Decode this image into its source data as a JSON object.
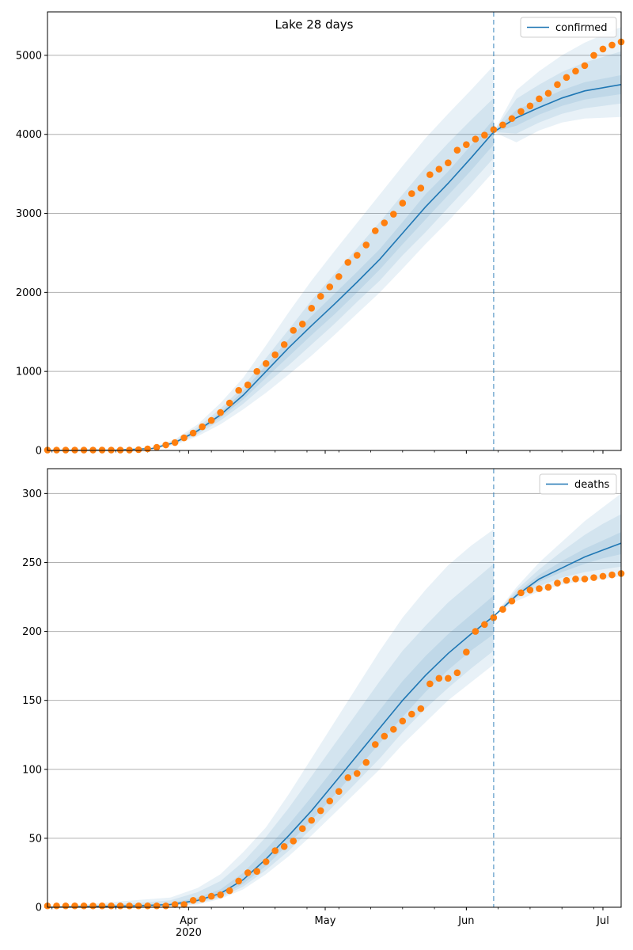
{
  "title": "Lake 28 days",
  "colors": {
    "model_line": "#1f77b4",
    "observed": "#ff7f0e",
    "band": "#1f77b4",
    "vline": "#1f77b4",
    "grid": "#b0b0b0"
  },
  "x_axis": {
    "type": "date",
    "range": [
      "2020-03-01",
      "2020-07-05"
    ],
    "major_ticks": [
      {
        "date": "2020-04-01",
        "label": "Apr"
      },
      {
        "date": "2020-05-01",
        "label": "May"
      },
      {
        "date": "2020-06-01",
        "label": "Jun"
      },
      {
        "date": "2020-07-01",
        "label": "Jul"
      }
    ],
    "year_label": "2020",
    "year_label_date": "2020-04-01",
    "minor_tick_interval_days": 7
  },
  "forecast_start": "2020-06-07",
  "chart_data": [
    {
      "type": "line",
      "legend": "confirmed",
      "legend_position": "top-right",
      "grid": "horizontal",
      "ylim": [
        0,
        5550
      ],
      "yticks": [
        0,
        1000,
        2000,
        3000,
        4000,
        5000
      ],
      "model": {
        "x": [
          "2020-03-01",
          "2020-03-16",
          "2020-03-24",
          "2020-03-29",
          "2020-04-03",
          "2020-04-08",
          "2020-04-13",
          "2020-04-18",
          "2020-04-23",
          "2020-04-28",
          "2020-05-03",
          "2020-05-08",
          "2020-05-13",
          "2020-05-18",
          "2020-05-23",
          "2020-05-28",
          "2020-06-02",
          "2020-06-07",
          "2020-06-12",
          "2020-06-17",
          "2020-06-22",
          "2020-06-27",
          "2020-07-05"
        ],
        "y": [
          0,
          5,
          25,
          100,
          250,
          450,
          700,
          1000,
          1300,
          1580,
          1850,
          2130,
          2420,
          2750,
          3080,
          3380,
          3700,
          4030,
          4210,
          4340,
          4460,
          4550,
          4630
        ],
        "bands": [
          {
            "lower": [
              0,
              2,
              15,
              70,
              180,
              330,
              520,
              730,
              960,
              1200,
              1460,
              1730,
              2000,
              2300,
              2610,
              2900,
              3210,
              3530,
              3900,
              4050,
              4150,
              4200,
              4220
            ],
            "upper": [
              0,
              8,
              35,
              140,
              330,
              600,
              920,
              1330,
              1750,
              2150,
              2520,
              2880,
              3240,
              3600,
              3950,
              4260,
              4560,
              4870,
              4560,
              4800,
              5000,
              5160,
              5360
            ]
          },
          {
            "lower": [
              0,
              3,
              19,
              83,
              207,
              380,
              590,
              840,
              1080,
              1340,
              1600,
              1880,
              2150,
              2470,
              2760,
              3070,
              3380,
              3700,
              4010,
              4150,
              4260,
              4330,
              4390
            ],
            "upper": [
              0,
              7,
              31,
              120,
              295,
              530,
              810,
              1170,
              1530,
              1900,
              2230,
              2560,
              2890,
              3240,
              3580,
              3890,
              4180,
              4460,
              4450,
              4630,
              4790,
              4910,
              5050
            ]
          },
          {
            "lower": [
              0,
              4,
              22,
              92,
              228,
              415,
              645,
              920,
              1190,
              1460,
              1720,
              2000,
              2290,
              2610,
              2920,
              3230,
              3540,
              3870,
              4110,
              4250,
              4360,
              4440,
              4510
            ],
            "upper": [
              0,
              6,
              28,
              108,
              272,
              485,
              755,
              1080,
              1410,
              1700,
              1980,
              2260,
              2550,
              2890,
              3240,
              3530,
              3860,
              4190,
              4310,
              4430,
              4560,
              4660,
              4750
            ]
          }
        ]
      },
      "observed": {
        "x": [
          "2020-03-01",
          "2020-03-03",
          "2020-03-05",
          "2020-03-07",
          "2020-03-09",
          "2020-03-11",
          "2020-03-13",
          "2020-03-15",
          "2020-03-17",
          "2020-03-19",
          "2020-03-21",
          "2020-03-23",
          "2020-03-25",
          "2020-03-27",
          "2020-03-29",
          "2020-03-31",
          "2020-04-02",
          "2020-04-04",
          "2020-04-06",
          "2020-04-08",
          "2020-04-10",
          "2020-04-12",
          "2020-04-14",
          "2020-04-16",
          "2020-04-18",
          "2020-04-20",
          "2020-04-22",
          "2020-04-24",
          "2020-04-26",
          "2020-04-28",
          "2020-04-30",
          "2020-05-02",
          "2020-05-04",
          "2020-05-06",
          "2020-05-08",
          "2020-05-10",
          "2020-05-12",
          "2020-05-14",
          "2020-05-16",
          "2020-05-18",
          "2020-05-20",
          "2020-05-22",
          "2020-05-24",
          "2020-05-26",
          "2020-05-28",
          "2020-05-30",
          "2020-06-01",
          "2020-06-03",
          "2020-06-05",
          "2020-06-07",
          "2020-06-09",
          "2020-06-11",
          "2020-06-13",
          "2020-06-15",
          "2020-06-17",
          "2020-06-19",
          "2020-06-21",
          "2020-06-23",
          "2020-06-25",
          "2020-06-27",
          "2020-06-29",
          "2020-07-01",
          "2020-07-03",
          "2020-07-05"
        ],
        "y": [
          5,
          5,
          5,
          5,
          5,
          5,
          5,
          5,
          5,
          5,
          10,
          20,
          40,
          70,
          100,
          160,
          220,
          300,
          380,
          480,
          600,
          760,
          830,
          1000,
          1100,
          1210,
          1340,
          1520,
          1600,
          1800,
          1950,
          2070,
          2200,
          2380,
          2470,
          2600,
          2780,
          2880,
          2990,
          3130,
          3250,
          3320,
          3490,
          3560,
          3640,
          3800,
          3870,
          3940,
          3990,
          4060,
          4120,
          4200,
          4290,
          4360,
          4450,
          4520,
          4630,
          4720,
          4800,
          4870,
          5000,
          5080,
          5130,
          5170
        ]
      }
    },
    {
      "type": "line",
      "legend": "deaths",
      "legend_position": "top-right",
      "grid": "horizontal",
      "ylim": [
        0,
        318
      ],
      "yticks": [
        0,
        50,
        100,
        150,
        200,
        250,
        300
      ],
      "model": {
        "x": [
          "2020-03-01",
          "2020-03-20",
          "2020-03-28",
          "2020-04-03",
          "2020-04-08",
          "2020-04-13",
          "2020-04-18",
          "2020-04-23",
          "2020-04-28",
          "2020-05-03",
          "2020-05-08",
          "2020-05-13",
          "2020-05-18",
          "2020-05-23",
          "2020-05-28",
          "2020-06-02",
          "2020-06-07",
          "2020-06-12",
          "2020-06-17",
          "2020-06-22",
          "2020-06-27",
          "2020-07-01",
          "2020-07-05"
        ],
        "y": [
          0,
          1,
          2,
          5,
          10,
          20,
          35,
          52,
          70,
          90,
          110,
          130,
          150,
          168,
          184,
          198,
          211,
          226,
          238,
          246,
          254,
          259,
          264
        ],
        "bands": [
          {
            "lower": [
              0,
              0,
              1,
              2,
              6,
              13,
              24,
              37,
              52,
              68,
              84,
              100,
              118,
              134,
              150,
              163,
              176,
              222,
              229,
              234,
              237,
              238,
              240
            ],
            "upper": [
              0,
              5,
              7,
              14,
              24,
              40,
              58,
              82,
              108,
              134,
              160,
              186,
              210,
              230,
              248,
              262,
              274,
              232,
              250,
              265,
              280,
              290,
              300
            ]
          },
          {
            "lower": [
              0,
              0,
              1,
              3,
              7,
              15,
              27,
              41,
              57,
              74,
              91,
              108,
              127,
              144,
              159,
              173,
              186,
              224,
              233,
              239,
              243,
              245,
              247
            ],
            "upper": [
              0,
              3,
              5,
              11,
              19,
              33,
              51,
              72,
              95,
              118,
              141,
              164,
              186,
              204,
              221,
              235,
              249,
              230,
              245,
              258,
              270,
              278,
              285
            ]
          },
          {
            "lower": [
              0,
              0,
              1,
              4,
              8,
              17,
              30,
              46,
              63,
              81,
              100,
              119,
              138,
              156,
              172,
              186,
              198,
              225,
              236,
              243,
              249,
              253,
              256
            ],
            "upper": [
              0,
              2,
              3,
              7,
              13,
              25,
              42,
              60,
              80,
              101,
              122,
              143,
              164,
              182,
              198,
              212,
              226,
              228,
              241,
              251,
              260,
              266,
              272
            ]
          }
        ]
      },
      "observed": {
        "x": [
          "2020-03-01",
          "2020-03-03",
          "2020-03-05",
          "2020-03-07",
          "2020-03-09",
          "2020-03-11",
          "2020-03-13",
          "2020-03-15",
          "2020-03-17",
          "2020-03-19",
          "2020-03-21",
          "2020-03-23",
          "2020-03-25",
          "2020-03-27",
          "2020-03-29",
          "2020-03-31",
          "2020-04-02",
          "2020-04-04",
          "2020-04-06",
          "2020-04-08",
          "2020-04-10",
          "2020-04-12",
          "2020-04-14",
          "2020-04-16",
          "2020-04-18",
          "2020-04-20",
          "2020-04-22",
          "2020-04-24",
          "2020-04-26",
          "2020-04-28",
          "2020-04-30",
          "2020-05-02",
          "2020-05-04",
          "2020-05-06",
          "2020-05-08",
          "2020-05-10",
          "2020-05-12",
          "2020-05-14",
          "2020-05-16",
          "2020-05-18",
          "2020-05-20",
          "2020-05-22",
          "2020-05-24",
          "2020-05-26",
          "2020-05-28",
          "2020-05-30",
          "2020-06-01",
          "2020-06-03",
          "2020-06-05",
          "2020-06-07",
          "2020-06-09",
          "2020-06-11",
          "2020-06-13",
          "2020-06-15",
          "2020-06-17",
          "2020-06-19",
          "2020-06-21",
          "2020-06-23",
          "2020-06-25",
          "2020-06-27",
          "2020-06-29",
          "2020-07-01",
          "2020-07-03",
          "2020-07-05"
        ],
        "y": [
          1,
          1,
          1,
          1,
          1,
          1,
          1,
          1,
          1,
          1,
          1,
          1,
          1,
          1,
          2,
          2,
          5,
          6,
          8,
          9,
          12,
          19,
          25,
          26,
          33,
          41,
          44,
          48,
          57,
          63,
          70,
          77,
          84,
          94,
          97,
          105,
          118,
          124,
          129,
          135,
          140,
          144,
          162,
          166,
          166,
          170,
          185,
          200,
          205,
          210,
          216,
          222,
          228,
          230,
          231,
          232,
          235,
          237,
          238,
          238,
          239,
          240,
          241,
          242
        ]
      }
    }
  ]
}
